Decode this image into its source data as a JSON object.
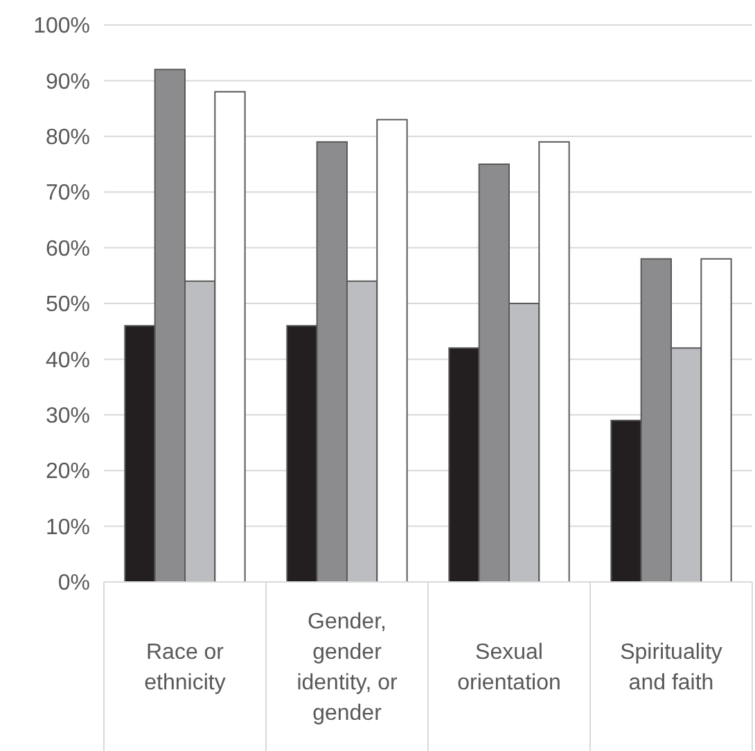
{
  "chart_data": {
    "type": "bar",
    "categories": [
      "Race or ethnicity",
      "Gender, gender identity, or gender",
      "Sexual orientation",
      "Spirituality and faith"
    ],
    "series": [
      {
        "color": "#231f20",
        "values": [
          46,
          46,
          42,
          29
        ]
      },
      {
        "color": "#8c8c8e",
        "values": [
          92,
          79,
          75,
          58
        ]
      },
      {
        "color": "#bcbdc0",
        "values": [
          54,
          54,
          50,
          42
        ]
      },
      {
        "color": "#ffffff",
        "values": [
          88,
          83,
          79,
          58
        ]
      }
    ],
    "ylim": [
      0,
      100
    ],
    "yticks": [
      {
        "value": 0,
        "label": "0%"
      },
      {
        "value": 10,
        "label": "10%"
      },
      {
        "value": 20,
        "label": "20%"
      },
      {
        "value": 30,
        "label": "30%"
      },
      {
        "value": 40,
        "label": "40%"
      },
      {
        "value": 50,
        "label": "50%"
      },
      {
        "value": 60,
        "label": "60%"
      },
      {
        "value": 70,
        "label": "70%"
      },
      {
        "value": 80,
        "label": "80%"
      },
      {
        "value": 90,
        "label": "90%"
      },
      {
        "value": 100,
        "label": "100%"
      }
    ],
    "grid": "y"
  }
}
